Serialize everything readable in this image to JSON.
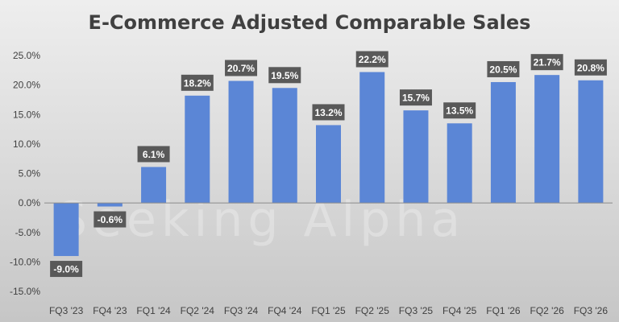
{
  "chart_data": {
    "type": "bar",
    "title": "E-Commerce Adjusted Comparable Sales",
    "xlabel": "",
    "ylabel": "",
    "ylim": [
      -15,
      25
    ],
    "yticks": [
      "25.0%",
      "20.0%",
      "15.0%",
      "10.0%",
      "5.0%",
      "0.0%",
      "-5.0%",
      "-10.0%",
      "-15.0%"
    ],
    "ytick_values": [
      25,
      20,
      15,
      10,
      5,
      0,
      -5,
      -10,
      -15
    ],
    "categories": [
      "FQ3 '23",
      "FQ4 '23",
      "FQ1 '24",
      "FQ2 '24",
      "FQ3 '24",
      "FQ4 '24",
      "FQ1 '25",
      "FQ2 '25",
      "FQ3 '25",
      "FQ4 '25",
      "FQ1 '26",
      "FQ2 '26",
      "FQ3 '26"
    ],
    "values": [
      -9.0,
      -0.6,
      6.1,
      18.2,
      20.7,
      19.5,
      13.2,
      22.2,
      15.7,
      13.5,
      20.5,
      21.7,
      20.8
    ],
    "data_labels": [
      "-9.0%",
      "-0.6%",
      "6.1%",
      "18.2%",
      "20.7%",
      "19.5%",
      "13.2%",
      "22.2%",
      "15.7%",
      "13.5%",
      "20.5%",
      "21.7%",
      "20.8%"
    ],
    "grid": false,
    "legend": "none",
    "colors": {
      "bar": "#5b86d6",
      "label_bg": "#595959",
      "label_text": "#ffffff",
      "axis_text": "#404040"
    }
  },
  "watermark": "Seeking Alpha"
}
